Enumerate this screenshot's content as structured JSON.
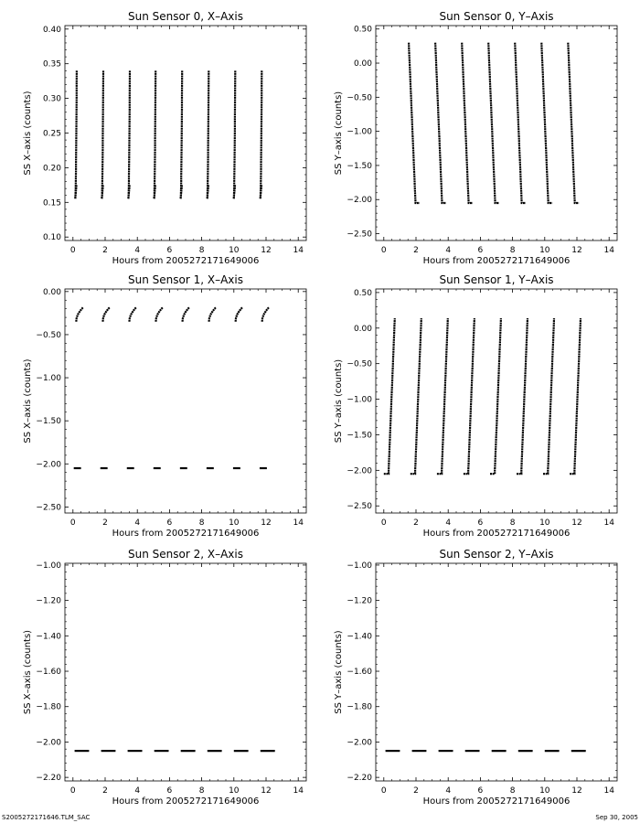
{
  "footer": {
    "left": "S2005272171646.TLM_SAC",
    "right": "Sep 30, 2005"
  },
  "chart_data": [
    {
      "type": "scatter",
      "title": "Sun Sensor 0, X–Axis",
      "xlabel": "Hours from 2005272171649006",
      "ylabel": "SS X–axis (counts)",
      "xlim": [
        -0.5,
        14.5
      ],
      "ylim": [
        0.095,
        0.405
      ],
      "xticks": [
        0,
        2,
        4,
        6,
        8,
        10,
        12,
        14
      ],
      "yticks": [
        0.1,
        0.15,
        0.2,
        0.25,
        0.3,
        0.35,
        0.4
      ],
      "ytick_labels": [
        "0.10",
        "0.15",
        "0.20",
        "0.25",
        "0.30",
        "0.35",
        "0.40"
      ],
      "cycle_starts": [
        0.1,
        1.75,
        3.4,
        5.0,
        6.65,
        8.3,
        9.95,
        11.6
      ],
      "pattern": "sensor0x",
      "grid": false
    },
    {
      "type": "scatter",
      "title": "Sun Sensor 0, Y–Axis",
      "xlabel": "Hours from 2005272171649006",
      "ylabel": "SS Y–axis (counts)",
      "xlim": [
        -0.5,
        14.5
      ],
      "ylim": [
        -2.6,
        0.55
      ],
      "xticks": [
        0,
        2,
        4,
        6,
        8,
        10,
        12,
        14
      ],
      "yticks": [
        -2.5,
        -2.0,
        -1.5,
        -1.0,
        -0.5,
        0.0,
        0.5
      ],
      "ytick_labels": [
        "-2.50",
        "-2.00",
        "-1.50",
        "-1.00",
        "-0.50",
        "0.00",
        "0.50"
      ],
      "cycle_starts": [
        1.5,
        3.15,
        4.8,
        6.45,
        8.1,
        9.75,
        11.4
      ],
      "pattern": "sensor0y",
      "grid": false
    },
    {
      "type": "scatter",
      "title": "Sun Sensor 1, X–Axis",
      "xlabel": "Hours from 2005272171649006",
      "ylabel": "SS X–axis (counts)",
      "xlim": [
        -0.5,
        14.5
      ],
      "ylim": [
        -2.57,
        0.03
      ],
      "xticks": [
        0,
        2,
        4,
        6,
        8,
        10,
        12,
        14
      ],
      "yticks": [
        -2.5,
        -2.0,
        -1.5,
        -1.0,
        -0.5,
        0.0
      ],
      "ytick_labels": [
        "-2.50",
        "-2.00",
        "-1.50",
        "-1.00",
        "-0.50",
        "0.00"
      ],
      "cycle_starts": [
        0.2,
        1.85,
        3.5,
        5.15,
        6.8,
        8.45,
        10.1,
        11.75
      ],
      "pattern": "sensor1x",
      "grid": false
    },
    {
      "type": "scatter",
      "title": "Sun Sensor 1, Y–Axis",
      "xlabel": "Hours from 2005272171649006",
      "ylabel": "SS Y–axis (counts)",
      "xlim": [
        -0.5,
        14.5
      ],
      "ylim": [
        -2.6,
        0.55
      ],
      "xticks": [
        0,
        2,
        4,
        6,
        8,
        10,
        12,
        14
      ],
      "yticks": [
        -2.5,
        -2.0,
        -1.5,
        -1.0,
        -0.5,
        0.0,
        0.5
      ],
      "ytick_labels": [
        "-2.50",
        "-2.00",
        "-1.50",
        "-1.00",
        "-0.50",
        "0.00",
        "0.50"
      ],
      "cycle_starts": [
        0.15,
        1.8,
        3.45,
        5.1,
        6.75,
        8.4,
        10.05,
        11.7
      ],
      "pattern": "sensor1y",
      "grid": false
    },
    {
      "type": "scatter",
      "title": "Sun Sensor 2, X–Axis",
      "xlabel": "Hours from 2005272171649006",
      "ylabel": "SS X–axis (counts)",
      "xlim": [
        -0.5,
        14.5
      ],
      "ylim": [
        -2.22,
        -0.99
      ],
      "xticks": [
        0,
        2,
        4,
        6,
        8,
        10,
        12,
        14
      ],
      "yticks": [
        -2.2,
        -2.0,
        -1.8,
        -1.6,
        -1.4,
        -1.2,
        -1.0
      ],
      "ytick_labels": [
        "-2.20",
        "-2.00",
        "-1.80",
        "-1.60",
        "-1.40",
        "-1.20",
        "-1.00"
      ],
      "cycle_starts": [
        0.0,
        1.65,
        3.3,
        4.95,
        6.6,
        8.25,
        9.9,
        11.55
      ],
      "pattern": "constant",
      "constant_value": -2.05,
      "grid": false
    },
    {
      "type": "scatter",
      "title": "Sun Sensor 2, Y–Axis",
      "xlabel": "Hours from 2005272171649006",
      "ylabel": "SS Y–axis (counts)",
      "xlim": [
        -0.5,
        14.5
      ],
      "ylim": [
        -2.22,
        -0.99
      ],
      "xticks": [
        0,
        2,
        4,
        6,
        8,
        10,
        12,
        14
      ],
      "yticks": [
        -2.2,
        -2.0,
        -1.8,
        -1.6,
        -1.4,
        -1.2,
        -1.0
      ],
      "ytick_labels": [
        "-2.20",
        "-2.00",
        "-1.80",
        "-1.60",
        "-1.40",
        "-1.20",
        "-1.00"
      ],
      "cycle_starts": [
        0.0,
        1.65,
        3.3,
        4.95,
        6.6,
        8.25,
        9.9,
        11.55
      ],
      "pattern": "constant",
      "constant_value": -2.05,
      "grid": false
    }
  ]
}
